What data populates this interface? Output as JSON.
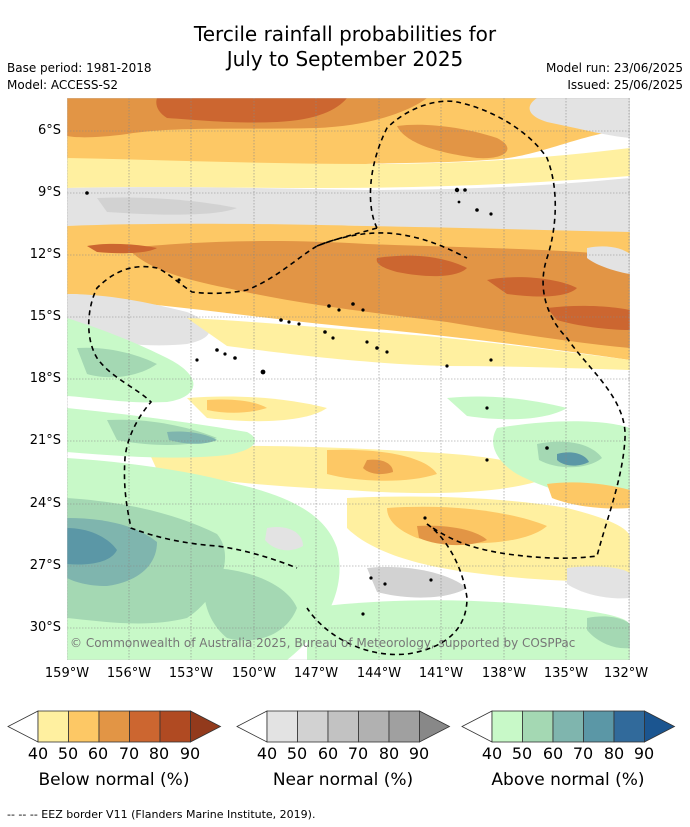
{
  "title": {
    "line1": "Tercile rainfall probabilities for",
    "line2": "July to September 2025"
  },
  "meta": {
    "base_period": "Base period: 1981-2018",
    "model": "Model: ACCESS-S2",
    "model_run": "Model run: 23/06/2025",
    "issued": "Issued: 25/06/2025"
  },
  "map": {
    "copyright": "© Commonwealth of Australia 2025, Bureau of Meteorology, supported by COSPPac",
    "lat_labels": [
      "6°S",
      "9°S",
      "12°S",
      "15°S",
      "18°S",
      "21°S",
      "24°S",
      "27°S",
      "30°S"
    ],
    "lon_labels": [
      "159°W",
      "156°W",
      "153°W",
      "150°W",
      "147°W",
      "144°W",
      "141°W",
      "138°W",
      "135°W",
      "132°W"
    ],
    "extent": {
      "lon": [
        -159,
        -132
      ],
      "lat": [
        -32,
        -5
      ]
    },
    "land_color": "#000000",
    "eez_border_style": "dashed"
  },
  "colorbars": [
    {
      "name": "below",
      "label": "Below normal (%)",
      "ticks": [
        "40",
        "50",
        "60",
        "70",
        "80",
        "90"
      ],
      "colors": [
        "#fff0a0",
        "#fdc865",
        "#e29545",
        "#cc6630",
        "#b04a22",
        "#923a1c"
      ]
    },
    {
      "name": "near",
      "label": "Near normal (%)",
      "ticks": [
        "40",
        "50",
        "60",
        "70",
        "80",
        "90"
      ],
      "colors": [
        "#e3e3e3",
        "#d2d2d2",
        "#c2c2c2",
        "#b1b1b1",
        "#a0a0a0",
        "#888888"
      ]
    },
    {
      "name": "above",
      "label": "Above normal (%)",
      "ticks": [
        "40",
        "50",
        "60",
        "70",
        "80",
        "90"
      ],
      "colors": [
        "#c8f9c8",
        "#a4d8b3",
        "#7fb5ae",
        "#5b97a6",
        "#316a9b",
        "#1b5590"
      ]
    }
  ],
  "footer": "-- -- -- EEZ border V11 (Flanders Marine Institute, 2019)."
}
